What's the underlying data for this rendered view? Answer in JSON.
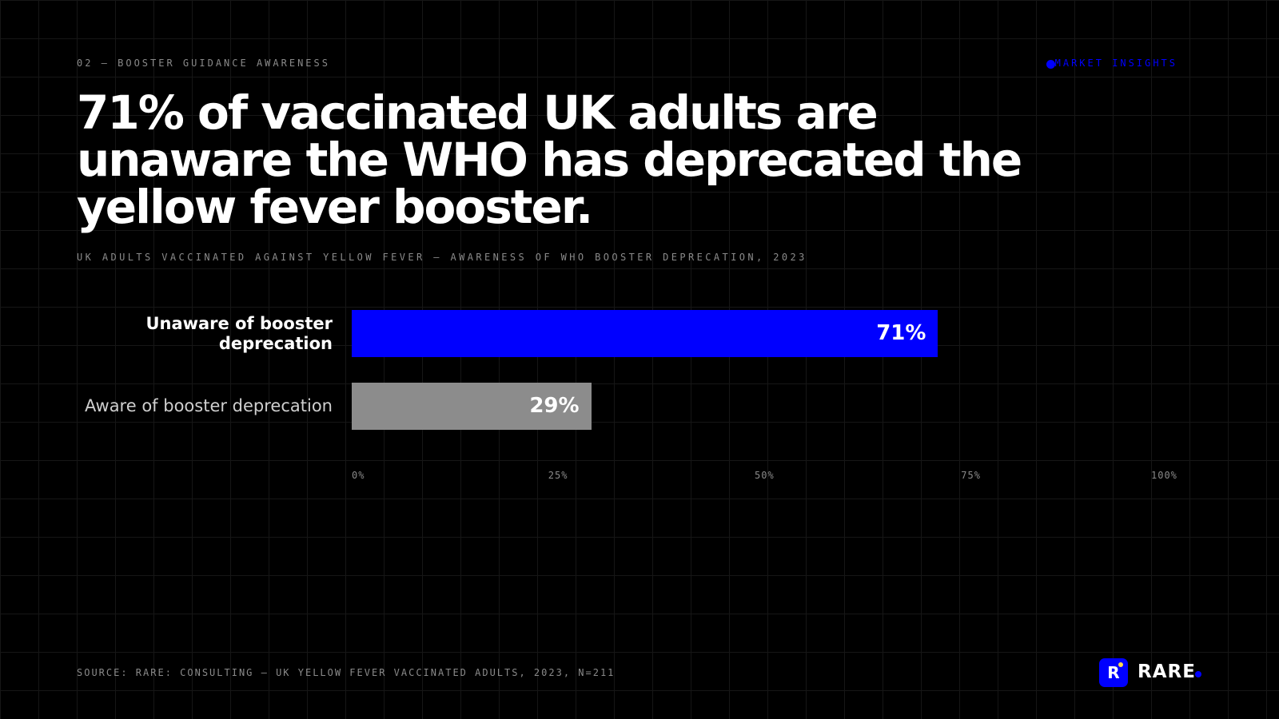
{
  "eyebrow": "02 — BOOSTER GUIDANCE AWARENESS",
  "tag": "MARKET INSIGHTS",
  "chart_data": {
    "type": "bar",
    "orientation": "horizontal",
    "title": "71% of vaccinated UK adults are unaware the WHO has deprecated the yellow fever booster.",
    "subtitle": "UK ADULTS VACCINATED AGAINST YELLOW FEVER — AWARENESS OF WHO BOOSTER DEPRECATION, 2023",
    "categories": [
      "Unaware of booster deprecation",
      "Aware of booster deprecation"
    ],
    "values": [
      71,
      29
    ],
    "value_labels": [
      "71%",
      "29%"
    ],
    "colors": [
      "#0000ff",
      "#8c8c8c"
    ],
    "xlim": [
      0,
      100
    ],
    "xticks": [
      {
        "value": 0,
        "label": "0%"
      },
      {
        "value": 25,
        "label": "25%"
      },
      {
        "value": 50,
        "label": "50%"
      },
      {
        "value": 75,
        "label": "75%"
      },
      {
        "value": 100,
        "label": "100%"
      }
    ]
  },
  "source": "SOURCE: RARE: CONSULTING — UK YELLOW FEVER VACCINATED ADULTS, 2023, N=211",
  "logo": {
    "mark": "R",
    "name": "RARE"
  }
}
